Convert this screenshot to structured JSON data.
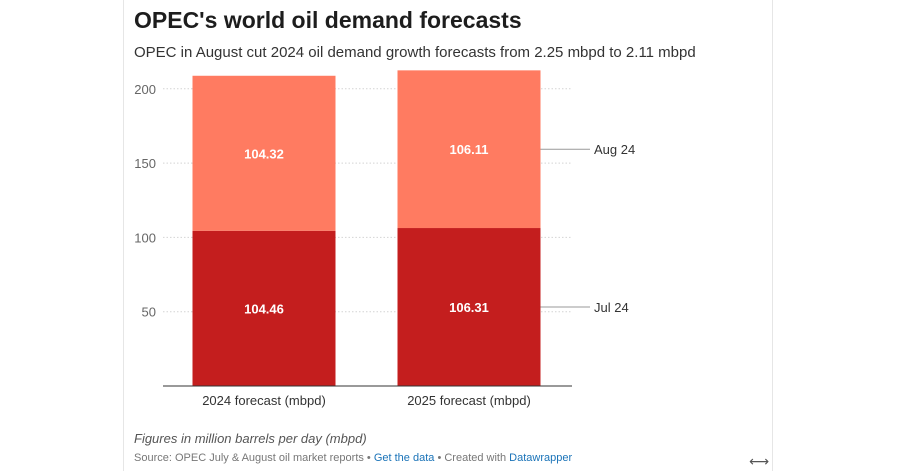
{
  "chart_data": {
    "type": "bar",
    "stacked": true,
    "title": "OPEC's world oil demand forecasts",
    "subtitle": "OPEC in August cut 2024 oil demand growth forecasts from 2.25 mbpd to 2.11 mbpd",
    "categories": [
      "2024 forecast (mbpd)",
      "2025 forecast (mbpd)"
    ],
    "series": [
      {
        "name": "Jul 24",
        "values": [
          104.46,
          106.31
        ],
        "color": "#c41e1e"
      },
      {
        "name": "Aug 24",
        "values": [
          104.32,
          106.11
        ],
        "color": "#ff7b61"
      }
    ],
    "data_labels": {
      "Jul 24": [
        "104.46",
        "106.31"
      ],
      "Aug 24": [
        "104.32",
        "106.11"
      ]
    },
    "yticks": [
      50,
      100,
      150,
      200
    ],
    "ylim": [
      0,
      210.64
    ],
    "xlabel": "",
    "ylabel": "",
    "grid": "horizontal-dotted",
    "legend": "right-inline-labels"
  },
  "footer": {
    "note": "Figures in million barrels per day (mbpd)",
    "source_prefix": "Source: OPEC July & August oil market reports • ",
    "get_data_label": "Get the data",
    "created_prefix": " • Created with ",
    "datawrapper_label": "Datawrapper"
  },
  "resize_icon": "⟷",
  "colors": {
    "jul": "#c41e1e",
    "aug": "#ff7b61",
    "label_text": "#ffffff"
  }
}
